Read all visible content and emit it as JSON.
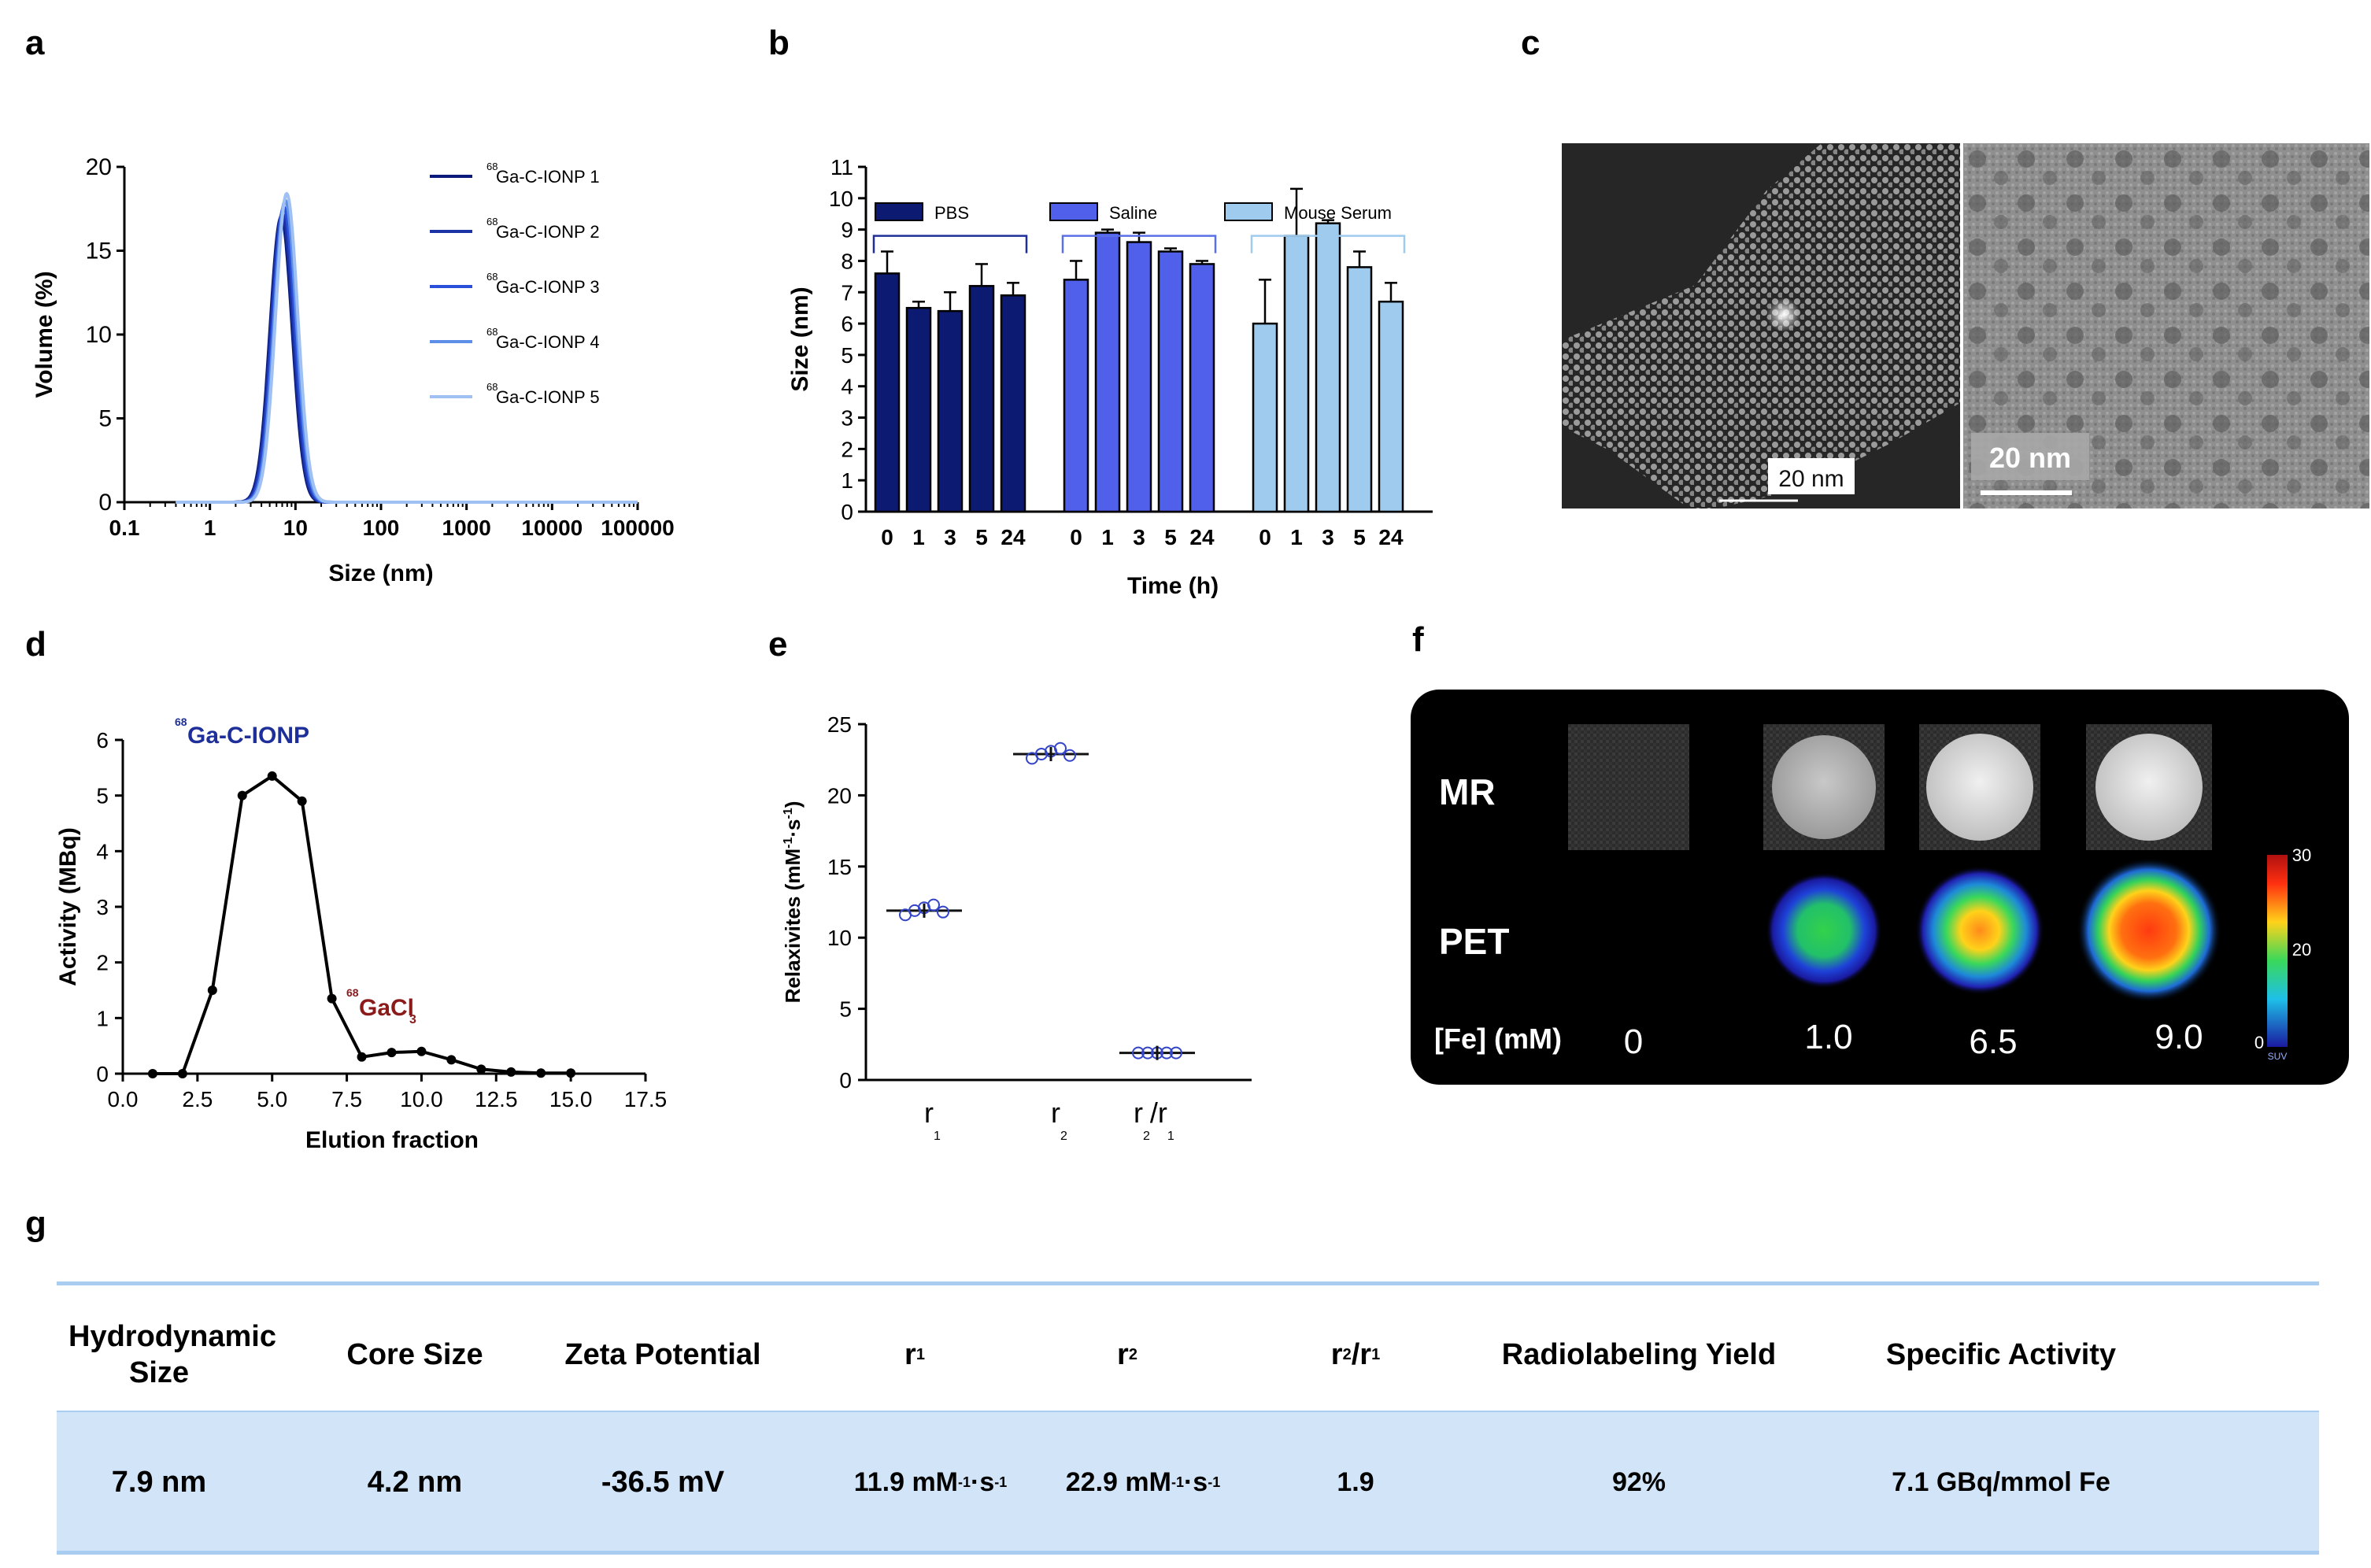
{
  "panel_letters": [
    "a",
    "b",
    "c",
    "d",
    "e",
    "f",
    "g"
  ],
  "chart_data": [
    {
      "id": "a",
      "type": "line",
      "xscale": "log",
      "xlabel": "Size (nm)",
      "ylabel": "Volume (%)",
      "xticks": [
        "0.1",
        "1",
        "10",
        "100",
        "1000",
        "10000",
        "100000"
      ],
      "xtick_values": [
        0.1,
        1,
        10,
        100,
        1000,
        10000,
        100000
      ],
      "yticks": [
        "0",
        "5",
        "10",
        "15",
        "20"
      ],
      "ylim": [
        0,
        20
      ],
      "series": [
        {
          "name": "Ga-C-IONP 1",
          "isotope": "68",
          "color": "#0a1a7a",
          "peak_x": 6.8,
          "peak_y": 17.0
        },
        {
          "name": "Ga-C-IONP 2",
          "isotope": "68",
          "color": "#1c33a6",
          "peak_x": 7.0,
          "peak_y": 17.2
        },
        {
          "name": "Ga-C-IONP 3",
          "isotope": "68",
          "color": "#2a4fd8",
          "peak_x": 7.3,
          "peak_y": 17.6
        },
        {
          "name": "Ga-C-IONP 4",
          "isotope": "68",
          "color": "#5d8fe8",
          "peak_x": 7.6,
          "peak_y": 18.0
        },
        {
          "name": "Ga-C-IONP 5",
          "isotope": "68",
          "color": "#9fc0f3",
          "peak_x": 7.9,
          "peak_y": 18.4
        }
      ]
    },
    {
      "id": "b",
      "type": "bar",
      "xlabel": "Time (h)",
      "ylabel": "Size (nm)",
      "ylim": [
        0,
        11
      ],
      "yticks": [
        "0",
        "1",
        "2",
        "3",
        "4",
        "5",
        "6",
        "7",
        "8",
        "9",
        "10",
        "11"
      ],
      "categories": [
        "0",
        "1",
        "3",
        "5",
        "24"
      ],
      "series": [
        {
          "name": "PBS",
          "color": "#0d1a72",
          "values": [
            7.6,
            6.5,
            6.4,
            7.2,
            6.9
          ],
          "errors": [
            0.7,
            0.2,
            0.6,
            0.7,
            0.4
          ]
        },
        {
          "name": "Saline",
          "color": "#5060ea",
          "values": [
            7.4,
            8.9,
            8.6,
            8.3,
            7.9
          ],
          "errors": [
            0.6,
            0.1,
            0.3,
            0.1,
            0.1
          ]
        },
        {
          "name": "Mouse Serum",
          "color": "#9fcbee",
          "values": [
            6.0,
            8.8,
            9.2,
            7.8,
            6.7
          ],
          "errors": [
            1.4,
            1.5,
            0.1,
            0.5,
            0.6
          ]
        }
      ]
    },
    {
      "id": "d",
      "type": "line",
      "xlabel": "Elution fraction",
      "ylabel": "Activity (MBq)",
      "xlim": [
        0,
        17.5
      ],
      "ylim": [
        0,
        6
      ],
      "xticks": [
        "0.0",
        "2.5",
        "5.0",
        "7.5",
        "10.0",
        "12.5",
        "15.0",
        "17.5"
      ],
      "yticks": [
        "0",
        "1",
        "2",
        "3",
        "4",
        "5",
        "6"
      ],
      "x": [
        1,
        2,
        3,
        4,
        5,
        6,
        7,
        8,
        9,
        10,
        11,
        12,
        13,
        14,
        15
      ],
      "values": [
        0,
        0,
        1.5,
        5.0,
        5.35,
        4.9,
        1.35,
        0.3,
        0.38,
        0.4,
        0.25,
        0.08,
        0.03,
        0.01,
        0.01
      ],
      "annotations": [
        {
          "text": "Ga-C-IONP",
          "isotope": "68",
          "color": "#1e2f9a"
        },
        {
          "text": "GaCl",
          "subscript": "3",
          "isotope": "68",
          "color": "#8b1a1a"
        }
      ]
    },
    {
      "id": "e",
      "type": "scatter",
      "ylabel_main": "Relaxivites (mM",
      "ylabel_sup1": "-1",
      "ylabel_mid": "·s",
      "ylabel_sup2": "-1",
      "ylabel_end": ")",
      "ylim": [
        0,
        25
      ],
      "yticks": [
        "0",
        "5",
        "10",
        "15",
        "20",
        "25"
      ],
      "categories": [
        {
          "main": "r",
          "sub": "1",
          "means": 11.9,
          "points": [
            11.6,
            11.9,
            12.1,
            12.3,
            11.8
          ]
        },
        {
          "main": "r",
          "sub": "2",
          "means": 22.9,
          "points": [
            22.6,
            22.9,
            23.1,
            23.3,
            22.8
          ]
        },
        {
          "main": "r",
          "sub": "2",
          "slash": "/",
          "main2": "r",
          "sub2": "1",
          "means": 1.9,
          "points": [
            1.9,
            1.9,
            1.9,
            1.9,
            1.9
          ]
        }
      ],
      "color": "#3344c8"
    }
  ],
  "tem": {
    "left_scale": "20 nm",
    "right_scale": "20 nm"
  },
  "pet": {
    "row_labels": [
      "MR",
      "PET"
    ],
    "fe_label": "[Fe] (mM)",
    "concentrations": [
      "0",
      "1.0",
      "6.5",
      "9.0"
    ],
    "colorbar_ticks": [
      "30",
      "20",
      "0"
    ],
    "colorbar_unit": "SUV"
  },
  "table": {
    "headers": [
      {
        "text": "Hydrodynamic Size"
      },
      {
        "text": "Core Size"
      },
      {
        "text": "Zeta Potential"
      },
      {
        "text": "r",
        "sub": "1"
      },
      {
        "text": "r",
        "sub": "2"
      },
      {
        "text": "r",
        "sub": "2",
        "slash": "/r",
        "sub2": "1"
      },
      {
        "text": "Radiolabeling Yield"
      },
      {
        "text": "Specific Activity"
      }
    ],
    "values": [
      "7.9 nm",
      "4.2 nm",
      "-36.5 mV",
      "11.9 mM",
      "22.9 mM",
      "1.9",
      "92%",
      "7.1 GBq/mmol Fe"
    ],
    "unit_sup": "-1",
    "unit_s": "·s"
  }
}
